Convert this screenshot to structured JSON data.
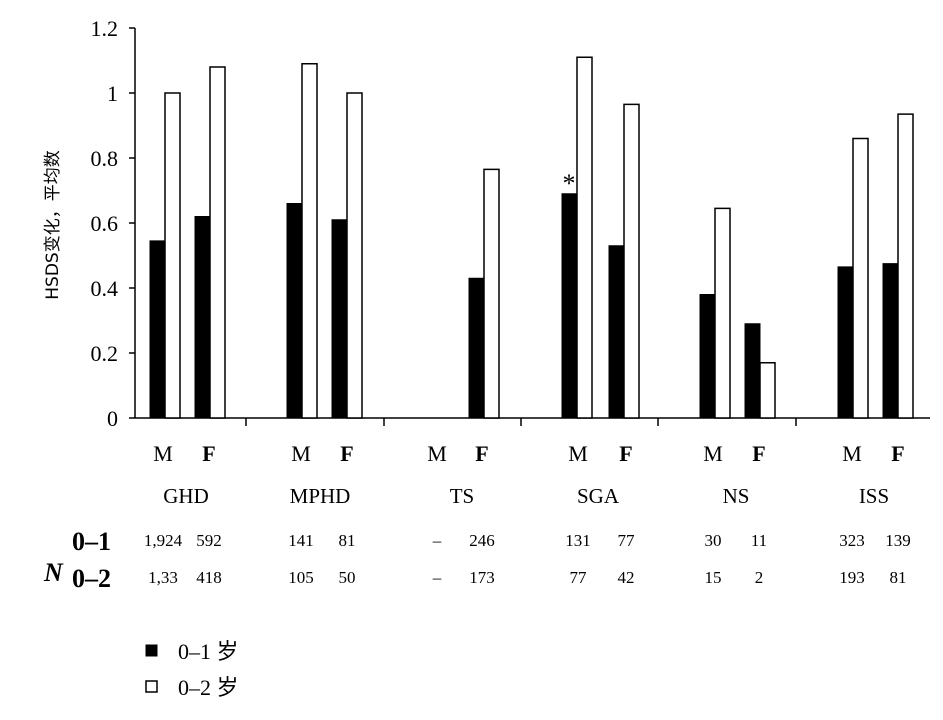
{
  "chart_data": {
    "type": "bar",
    "title": "",
    "ylabel": "HSDS变化，平均数",
    "xlabel": "",
    "ylim": [
      0,
      1.2
    ],
    "yticks": [
      {
        "value": 0,
        "label": "0"
      },
      {
        "value": 0.2,
        "label": "0.2"
      },
      {
        "value": 0.4,
        "label": "0.4"
      },
      {
        "value": 0.6,
        "label": "0.6"
      },
      {
        "value": 0.8,
        "label": "0.8"
      },
      {
        "value": 1.0,
        "label": "1"
      },
      {
        "value": 1.2,
        "label": "1.2"
      }
    ],
    "groups": [
      {
        "name": "GHD",
        "sexes": [
          {
            "label": "M",
            "v01": 0.545,
            "v02": 1.0,
            "n01": "1,924",
            "n02": "1,33"
          },
          {
            "label": "F",
            "v01": 0.62,
            "v02": 1.08,
            "n01": "592",
            "n02": "418"
          }
        ]
      },
      {
        "name": "MPHD",
        "sexes": [
          {
            "label": "M",
            "v01": 0.66,
            "v02": 1.09,
            "n01": "141",
            "n02": "105"
          },
          {
            "label": "F",
            "v01": 0.61,
            "v02": 1.0,
            "n01": "81",
            "n02": "50"
          }
        ]
      },
      {
        "name": "TS",
        "sexes": [
          {
            "label": "M",
            "v01": null,
            "v02": null,
            "n01": "–",
            "n02": "–"
          },
          {
            "label": "F",
            "v01": 0.43,
            "v02": 0.765,
            "n01": "246",
            "n02": "173"
          }
        ]
      },
      {
        "name": "SGA",
        "sexes": [
          {
            "label": "M",
            "v01": 0.69,
            "v02": 1.11,
            "n01": "131",
            "n02": "77",
            "annotation": "*"
          },
          {
            "label": "F",
            "v01": 0.53,
            "v02": 0.965,
            "n01": "77",
            "n02": "42"
          }
        ]
      },
      {
        "name": "NS",
        "sexes": [
          {
            "label": "M",
            "v01": 0.38,
            "v02": 0.645,
            "n01": "30",
            "n02": "15"
          },
          {
            "label": "F",
            "v01": 0.29,
            "v02": 0.17,
            "n01": "11",
            "n02": "2"
          }
        ]
      },
      {
        "name": "ISS",
        "sexes": [
          {
            "label": "M",
            "v01": 0.465,
            "v02": 0.86,
            "n01": "323",
            "n02": "193"
          },
          {
            "label": "F",
            "v01": 0.475,
            "v02": 0.935,
            "n01": "139",
            "n02": "81"
          }
        ]
      }
    ],
    "n_table": {
      "label": "N",
      "row_labels": [
        "0–1",
        "0–2"
      ]
    },
    "legend": {
      "position": "bottom-left",
      "entries": [
        {
          "label": "0–1 岁",
          "color": "#000000"
        },
        {
          "label": "0–2 岁",
          "color": "#ffffff"
        }
      ]
    }
  }
}
